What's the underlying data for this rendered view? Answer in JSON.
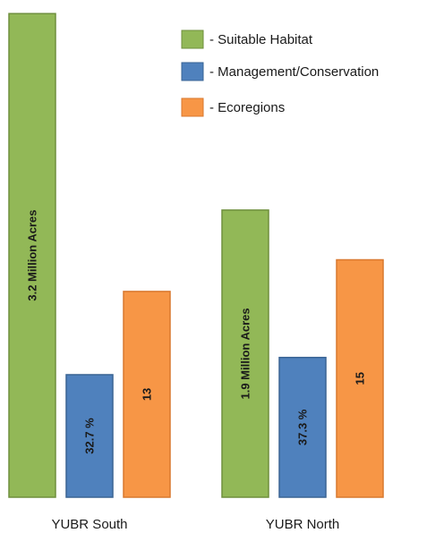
{
  "chart_data": {
    "type": "bar",
    "categories": [
      "YUBR South",
      "YUBR North"
    ],
    "series": [
      {
        "name": "- Suitable Habitat",
        "color": "#92b857",
        "edge": "#6f8f3d",
        "bar_values": [
          3.2,
          1.9
        ],
        "labels": [
          "3.2 Million Acres",
          "1.9 Million Acres"
        ]
      },
      {
        "name": "- Management/Conservation",
        "color": "#4f81bd",
        "edge": "#3a6494",
        "bar_values": [
          32.7,
          37.3
        ],
        "labels": [
          "32.7 %",
          "37.3 %"
        ]
      },
      {
        "name": "- Ecoregions",
        "color": "#f79646",
        "edge": "#d9782f",
        "bar_values": [
          13,
          15
        ],
        "labels": [
          "13",
          "15"
        ]
      }
    ],
    "legend": "top-right",
    "grid": false,
    "title": "",
    "xlabel": "",
    "ylabel": ""
  }
}
